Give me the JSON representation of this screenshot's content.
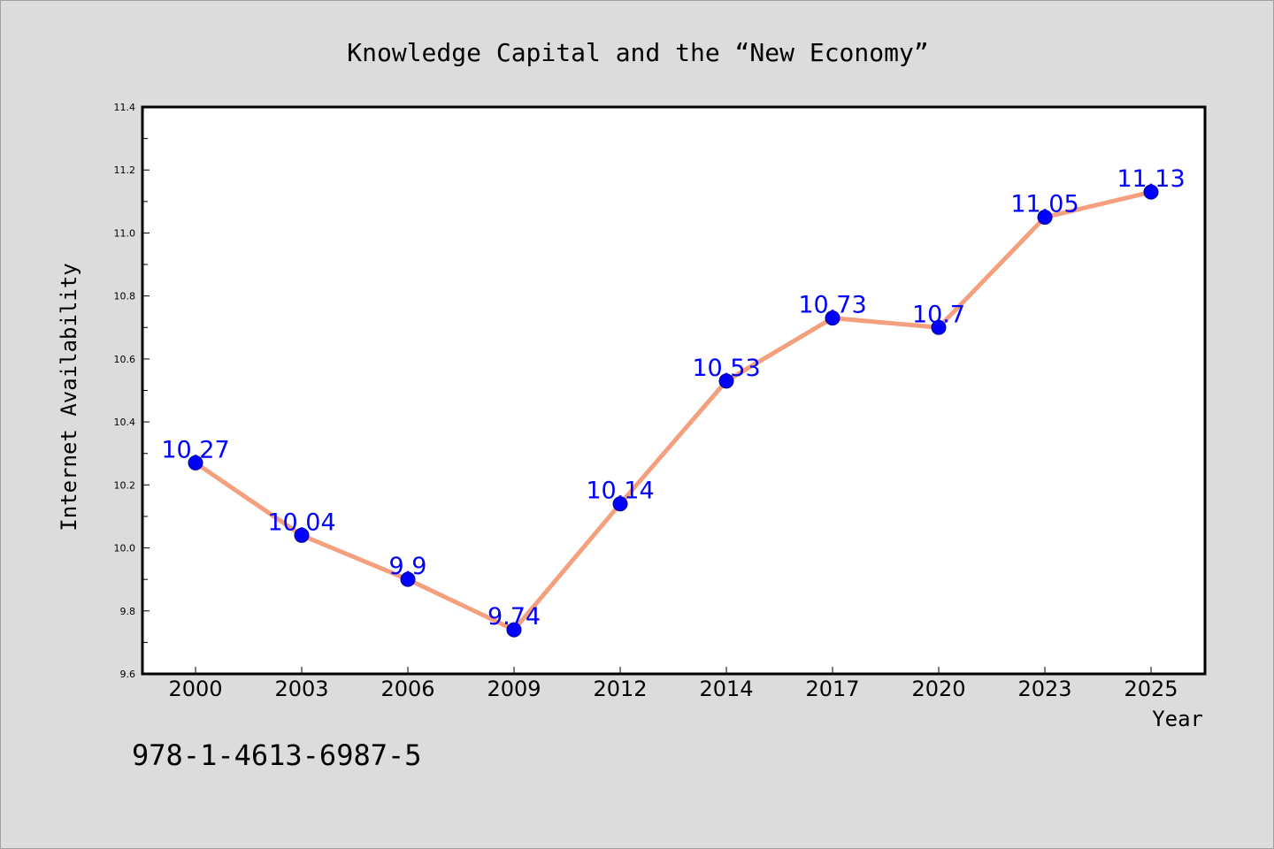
{
  "chart_data": {
    "type": "line",
    "title": "Knowledge Capital and the “New Economy”",
    "xlabel": "Year",
    "ylabel": "Internet Availability",
    "categories": [
      "2000",
      "2003",
      "2006",
      "2009",
      "2012",
      "2014",
      "2017",
      "2020",
      "2023",
      "2025"
    ],
    "series": [
      {
        "values": [
          10.27,
          10.04,
          9.9,
          9.74,
          10.14,
          10.53,
          10.73,
          10.7,
          11.05,
          11.13
        ],
        "data_labels": [
          "10.27",
          "10.04",
          "9.9",
          "9.74",
          "10.14",
          "10.53",
          "10.73",
          "10.7",
          "11.05",
          "11.13"
        ]
      }
    ],
    "ylim": [
      9.6,
      11.4
    ],
    "yticks": [
      "9.6",
      "9.8",
      "10.0",
      "10.2",
      "10.4",
      "10.6",
      "10.8",
      "11.0",
      "11.2",
      "11.4"
    ],
    "grid": false,
    "legend": "none",
    "colors": {
      "line": "#f4a07e",
      "marker": "#0000ff",
      "label": "#0000ff",
      "background": "#dcdcdc",
      "plot_area": "#ffffff"
    }
  },
  "footer": {
    "isbn": "978-1-4613-6987-5"
  }
}
